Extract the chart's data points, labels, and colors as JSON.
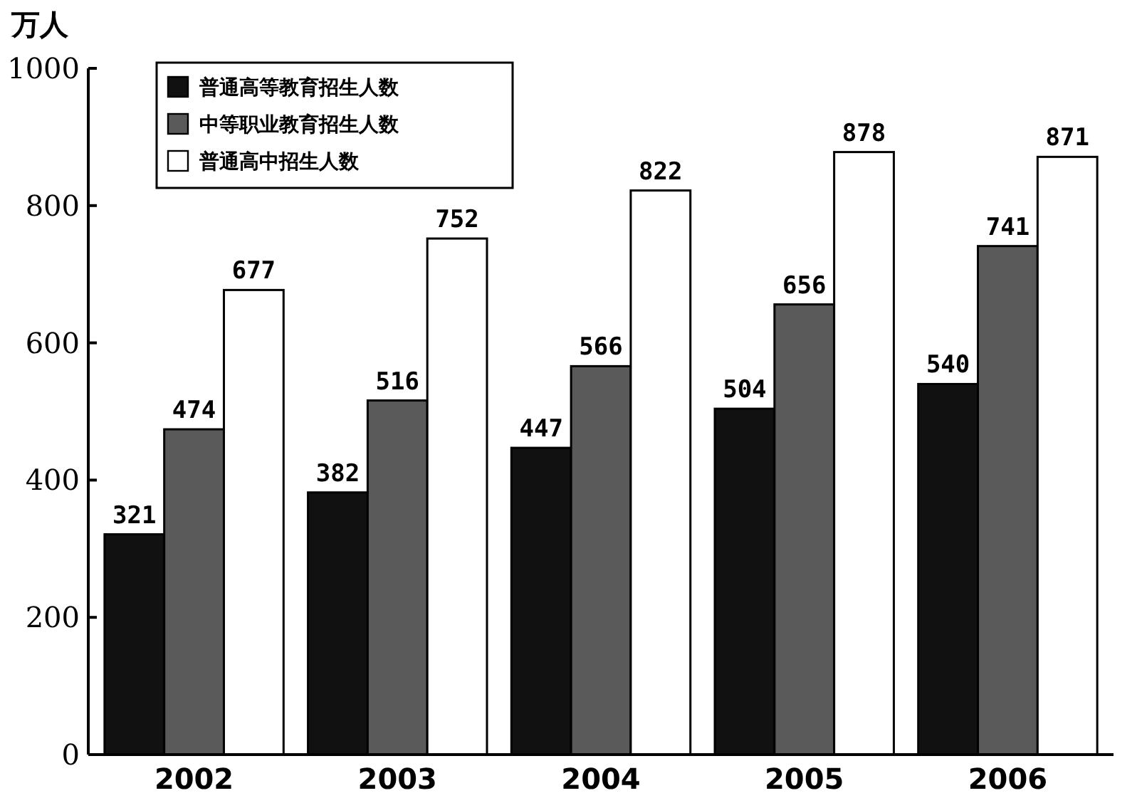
{
  "chart_data": {
    "type": "bar",
    "ylabel": "万人",
    "categories": [
      "2002",
      "2003",
      "2004",
      "2005",
      "2006"
    ],
    "series": [
      {
        "name": "普通高等教育招生人数",
        "color": "#111111",
        "values": [
          321,
          382,
          447,
          504,
          540
        ]
      },
      {
        "name": "中等职业教育招生人数",
        "color": "#5a5a5a",
        "values": [
          474,
          516,
          566,
          656,
          741
        ]
      },
      {
        "name": "普通高中招生人数",
        "color": "#ffffff",
        "values": [
          677,
          752,
          822,
          878,
          871
        ]
      }
    ],
    "ylim": [
      0,
      1000
    ],
    "yticks": [
      0,
      200,
      400,
      600,
      800,
      1000
    ],
    "data_labels": true,
    "legend": "top left",
    "grid": false
  }
}
